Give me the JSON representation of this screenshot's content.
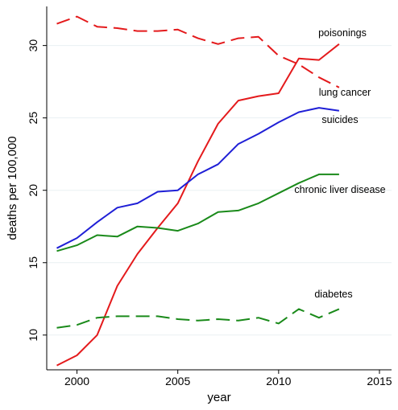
{
  "chart_data": {
    "type": "line",
    "xlabel": "year",
    "ylabel": "deaths per 100,000",
    "xlim": [
      1998.5,
      2015.6
    ],
    "ylim": [
      7.6,
      32.7
    ],
    "x_ticks": [
      2000,
      2005,
      2010,
      2015
    ],
    "y_ticks": [
      10,
      15,
      20,
      25,
      30
    ],
    "grid": "horizontal",
    "legend": "direct labels at right",
    "series": [
      {
        "name": "poisonings",
        "color": "#e41a1c",
        "dash": "solid",
        "x": [
          1999,
          2000,
          2001,
          2002,
          2003,
          2004,
          2005,
          2006,
          2007,
          2008,
          2009,
          2010,
          2011,
          2012,
          2013
        ],
        "values": [
          7.9,
          8.6,
          10.0,
          13.4,
          15.6,
          17.4,
          19.1,
          22.0,
          24.6,
          26.2,
          26.5,
          26.7,
          29.1,
          29.0,
          30.1
        ]
      },
      {
        "name": "lung cancer",
        "color": "#e41a1c",
        "dash": "dashed",
        "x": [
          1999,
          2000,
          2001,
          2002,
          2003,
          2004,
          2005,
          2006,
          2007,
          2008,
          2009,
          2010,
          2011,
          2012,
          2013
        ],
        "values": [
          31.5,
          32.0,
          31.3,
          31.2,
          31.0,
          31.0,
          31.1,
          30.5,
          30.1,
          30.5,
          30.6,
          29.3,
          28.7,
          27.8,
          27.1
        ]
      },
      {
        "name": "suicides",
        "color": "#1f1fd6",
        "dash": "solid",
        "x": [
          1999,
          2000,
          2001,
          2002,
          2003,
          2004,
          2005,
          2006,
          2007,
          2008,
          2009,
          2010,
          2011,
          2012,
          2013
        ],
        "values": [
          16.0,
          16.7,
          17.8,
          18.8,
          19.1,
          19.9,
          20.0,
          21.1,
          21.8,
          23.2,
          23.9,
          24.7,
          25.4,
          25.7,
          25.5
        ]
      },
      {
        "name": "chronic liver disease",
        "color": "#1a8a1a",
        "dash": "solid",
        "x": [
          1999,
          2000,
          2001,
          2002,
          2003,
          2004,
          2005,
          2006,
          2007,
          2008,
          2009,
          2010,
          2011,
          2012,
          2013
        ],
        "values": [
          15.8,
          16.2,
          16.9,
          16.8,
          17.5,
          17.4,
          17.2,
          17.7,
          18.5,
          18.6,
          19.1,
          19.8,
          20.5,
          21.1,
          21.1
        ]
      },
      {
        "name": "diabetes",
        "color": "#1a8a1a",
        "dash": "dashed",
        "x": [
          1999,
          2000,
          2001,
          2002,
          2003,
          2004,
          2005,
          2006,
          2007,
          2008,
          2009,
          2010,
          2011,
          2012,
          2013
        ],
        "values": [
          10.5,
          10.7,
          11.2,
          11.3,
          11.3,
          11.3,
          11.1,
          11.0,
          11.1,
          11.0,
          11.2,
          10.8,
          11.8,
          11.2,
          11.8
        ]
      }
    ]
  }
}
